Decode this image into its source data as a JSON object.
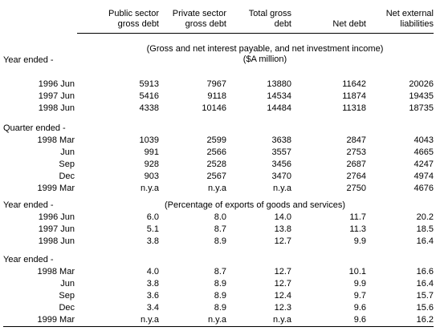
{
  "columns": [
    [
      "Public sector",
      "gross debt"
    ],
    [
      "Private sector",
      "gross debt"
    ],
    [
      "Total gross",
      "debt"
    ],
    [
      "",
      "Net debt"
    ],
    [
      "Net external",
      "liabilities"
    ]
  ],
  "sections": {
    "interest_note_1": "(Gross and net interest payable, and net investment income)",
    "interest_note_2": "($A million)",
    "percent_note": "(Percentage of exports of goods and services)",
    "year_ended": "Year ended -",
    "quarter_ended": "Quarter ended -"
  },
  "rows": [
    {
      "label": "1996 Jun",
      "values": [
        "5913",
        "7967",
        "13880",
        "11642",
        "20026"
      ]
    },
    {
      "label": "1997 Jun",
      "values": [
        "5416",
        "9118",
        "14534",
        "11874",
        "19435"
      ]
    },
    {
      "label": "1998 Jun",
      "values": [
        "4338",
        "10146",
        "14484",
        "11318",
        "18735"
      ]
    },
    {
      "label": "1998 Mar",
      "values": [
        "1039",
        "2599",
        "3638",
        "2847",
        "4043"
      ]
    },
    {
      "label": "Jun",
      "values": [
        "991",
        "2566",
        "3557",
        "2753",
        "4665"
      ]
    },
    {
      "label": "Sep",
      "values": [
        "928",
        "2528",
        "3456",
        "2687",
        "4247"
      ]
    },
    {
      "label": "Dec",
      "values": [
        "903",
        "2567",
        "3470",
        "2764",
        "4974"
      ]
    },
    {
      "label": "1999 Mar",
      "values": [
        "n.y.a",
        "n.y.a",
        "n.y.a",
        "2750",
        "4676"
      ]
    },
    {
      "label": "1996 Jun",
      "values": [
        "6.0",
        "8.0",
        "14.0",
        "11.7",
        "20.2"
      ]
    },
    {
      "label": "1997 Jun",
      "values": [
        "5.1",
        "8.7",
        "13.8",
        "11.3",
        "18.5"
      ]
    },
    {
      "label": "1998 Jun",
      "values": [
        "3.8",
        "8.9",
        "12.7",
        "9.9",
        "16.4"
      ]
    },
    {
      "label": "1998 Mar",
      "values": [
        "4.0",
        "8.7",
        "12.7",
        "10.1",
        "16.6"
      ]
    },
    {
      "label": "Jun",
      "values": [
        "3.8",
        "8.9",
        "12.7",
        "9.9",
        "16.4"
      ]
    },
    {
      "label": "Sep",
      "values": [
        "3.6",
        "8.9",
        "12.4",
        "9.7",
        "15.7"
      ]
    },
    {
      "label": "Dec",
      "values": [
        "3.4",
        "8.9",
        "12.3",
        "9.6",
        "15.6"
      ]
    },
    {
      "label": "1999 Mar",
      "values": [
        "n.y.a",
        "n.y.a",
        "n.y.a",
        "9.6",
        "16.2"
      ]
    }
  ]
}
